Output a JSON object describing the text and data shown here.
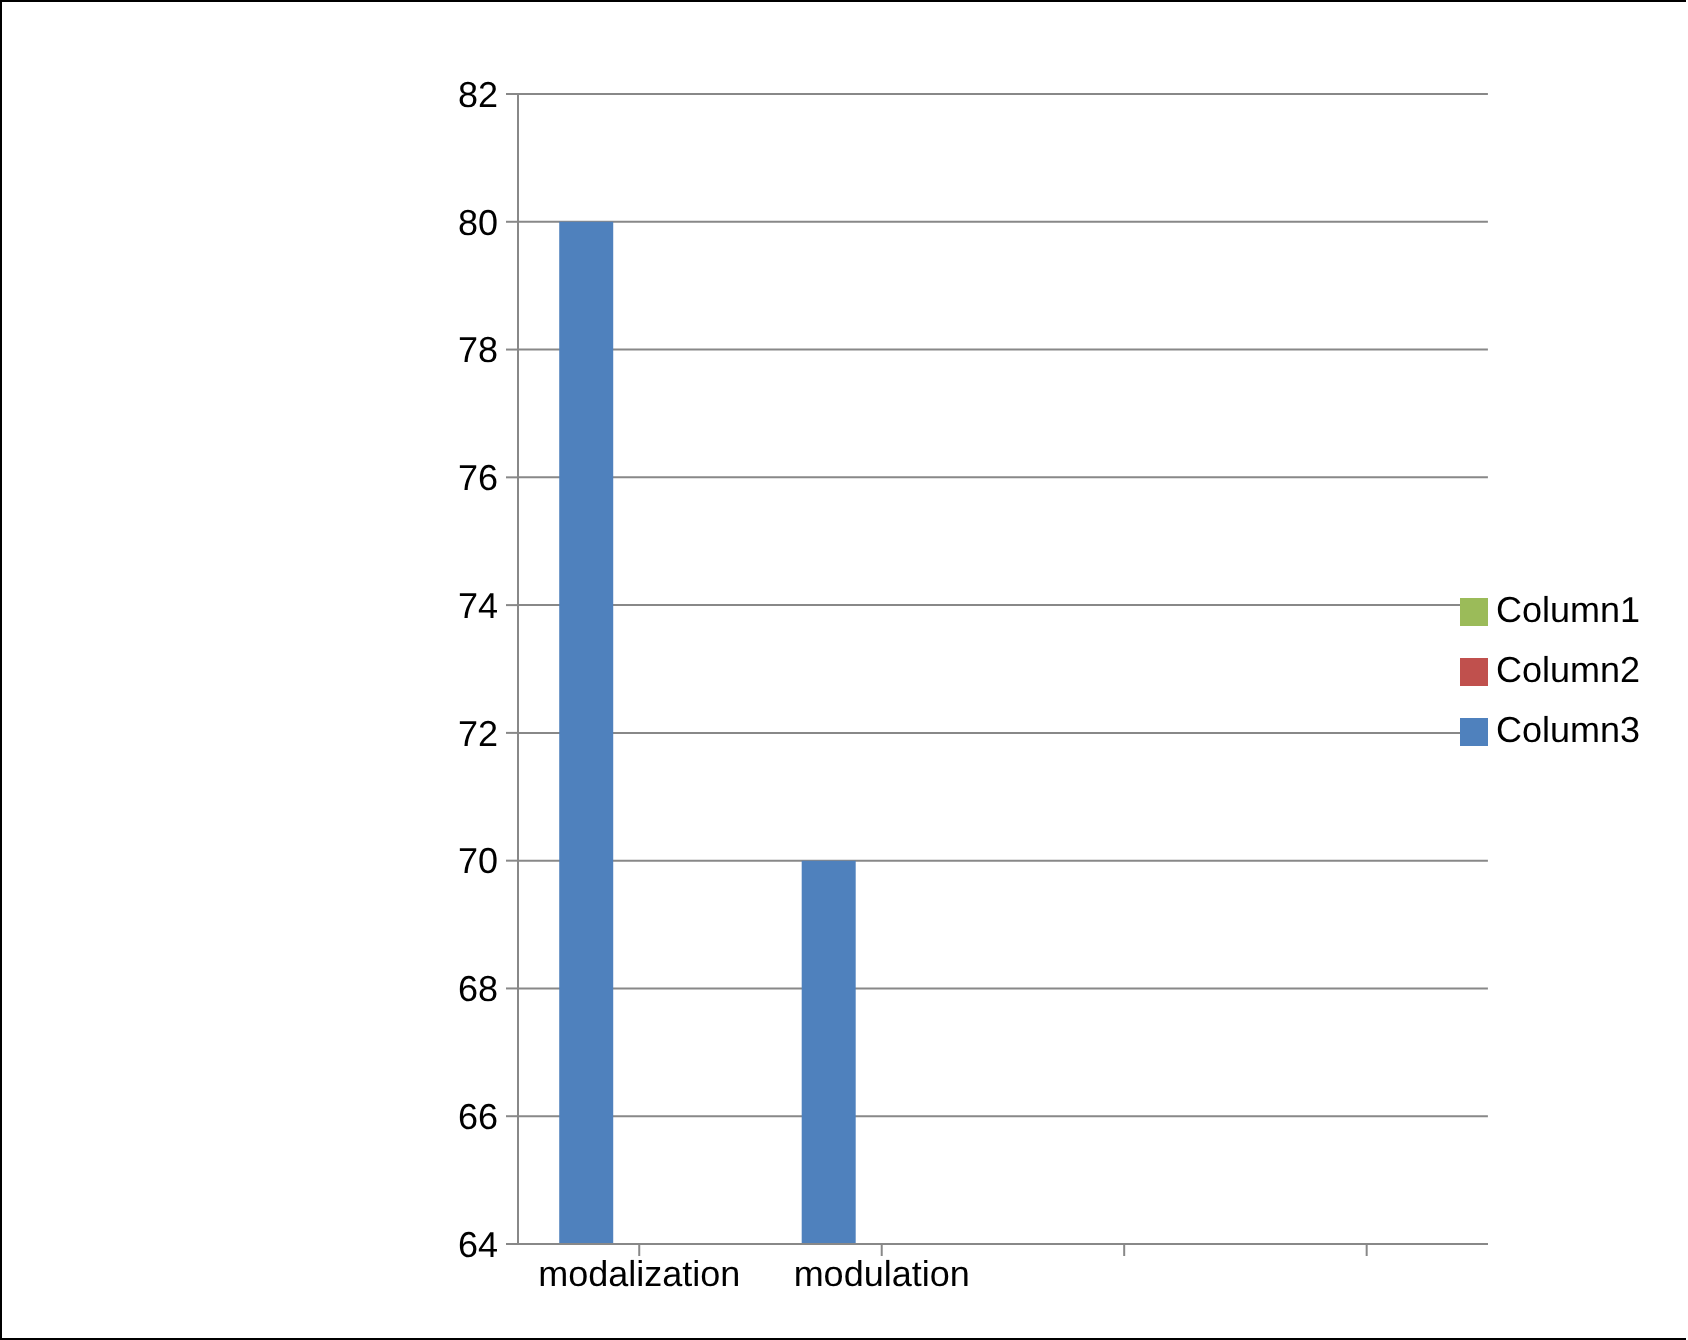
{
  "chart_data": {
    "type": "bar",
    "categories": [
      "modalization",
      "modulation",
      null,
      null
    ],
    "series": [
      {
        "name": "Column3",
        "color": "#4f81bd",
        "values": [
          80,
          70,
          null,
          null
        ]
      },
      {
        "name": "Column2",
        "color": "#c0504d",
        "values": [
          null,
          null,
          null,
          null
        ]
      },
      {
        "name": "Column1",
        "color": "#9bbb59",
        "values": [
          null,
          null,
          null,
          null
        ]
      }
    ],
    "ylim": [
      64,
      82
    ],
    "yticks": [
      64,
      66,
      68,
      70,
      72,
      74,
      76,
      78,
      80,
      82
    ],
    "grid": "y",
    "legend": "right"
  }
}
